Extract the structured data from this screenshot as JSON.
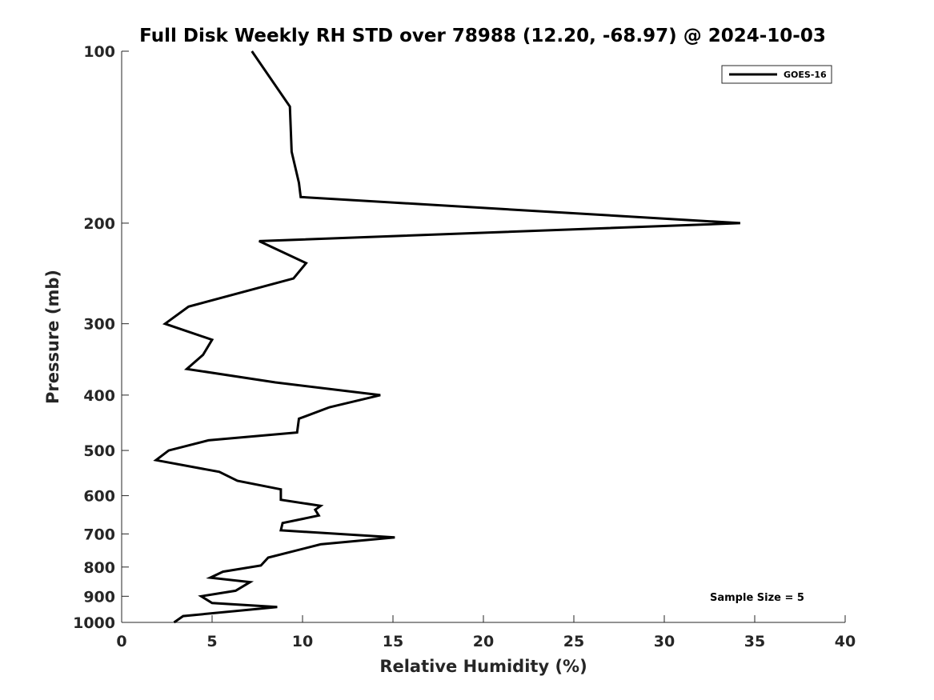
{
  "chart_data": {
    "type": "line",
    "title": "Full Disk Weekly RH STD over 78988 (12.20, -68.97) @ 2024-10-03",
    "xlabel": "Relative Humidity (%)",
    "ylabel": "Pressure (mb)",
    "xlim": [
      0,
      40
    ],
    "ylim": [
      100,
      1000
    ],
    "y_scale": "log",
    "y_inverted": true,
    "x_ticks": [
      0,
      5,
      10,
      15,
      20,
      25,
      30,
      35,
      40
    ],
    "y_ticks": [
      100,
      200,
      300,
      400,
      500,
      600,
      700,
      800,
      900,
      1000
    ],
    "grid": false,
    "legend_position": "top-right",
    "annotation": "Sample Size = 5",
    "series": [
      {
        "name": "GOES-16",
        "color": "#000000",
        "points": [
          [
            7.2,
            100
          ],
          [
            9.3,
            125
          ],
          [
            9.4,
            150
          ],
          [
            9.8,
            170
          ],
          [
            9.9,
            180
          ],
          [
            34.2,
            200
          ],
          [
            7.6,
            215
          ],
          [
            10.2,
            235
          ],
          [
            9.5,
            250
          ],
          [
            3.7,
            280
          ],
          [
            2.4,
            300
          ],
          [
            5.0,
            320
          ],
          [
            4.5,
            340
          ],
          [
            3.6,
            360
          ],
          [
            8.5,
            380
          ],
          [
            14.3,
            400
          ],
          [
            11.5,
            420
          ],
          [
            9.8,
            440
          ],
          [
            9.7,
            465
          ],
          [
            4.8,
            480
          ],
          [
            2.6,
            500
          ],
          [
            1.9,
            520
          ],
          [
            5.4,
            545
          ],
          [
            6.4,
            565
          ],
          [
            8.8,
            585
          ],
          [
            8.8,
            610
          ],
          [
            11.0,
            625
          ],
          [
            10.7,
            635
          ],
          [
            10.9,
            650
          ],
          [
            8.9,
            670
          ],
          [
            8.8,
            690
          ],
          [
            15.1,
            710
          ],
          [
            11.0,
            730
          ],
          [
            8.1,
            770
          ],
          [
            7.7,
            795
          ],
          [
            5.6,
            815
          ],
          [
            4.9,
            835
          ],
          [
            7.1,
            850
          ],
          [
            6.3,
            880
          ],
          [
            4.4,
            900
          ],
          [
            5.0,
            925
          ],
          [
            8.6,
            940
          ],
          [
            3.4,
            975
          ],
          [
            2.9,
            1000
          ]
        ]
      }
    ]
  }
}
